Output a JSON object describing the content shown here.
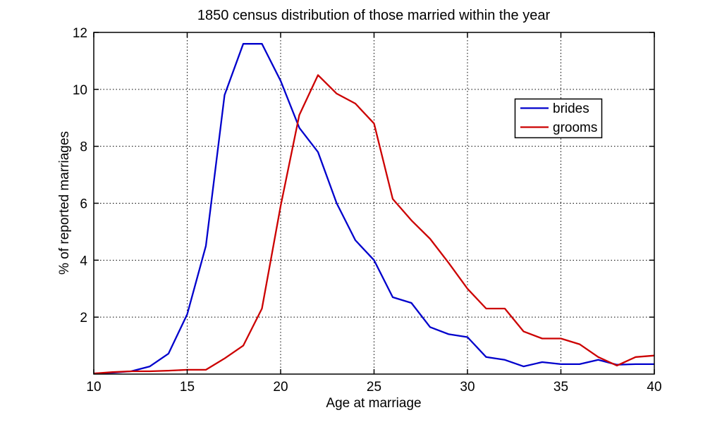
{
  "figure": {
    "background": "#ffffff",
    "axis_color": "#000000",
    "grid_style": "dotted"
  },
  "legend": {
    "position": "upper right",
    "entries": [
      {
        "label": "brides",
        "color": "#0000CC"
      },
      {
        "label": "grooms",
        "color": "#CC0000"
      }
    ]
  },
  "chart_data": {
    "type": "line",
    "title": "1850 census distribution of those married within the year",
    "xlabel": "Age at marriage",
    "ylabel": "% of reported marriages",
    "xlim": [
      10,
      40
    ],
    "ylim": [
      0,
      12
    ],
    "xticks": [
      10,
      15,
      20,
      25,
      30,
      35,
      40
    ],
    "yticks": [
      2,
      4,
      6,
      8,
      10,
      12
    ],
    "grid": true,
    "legend_position": "upper right",
    "x": [
      10,
      11,
      12,
      13,
      14,
      15,
      16,
      17,
      18,
      19,
      20,
      21,
      22,
      23,
      24,
      25,
      26,
      27,
      28,
      29,
      30,
      31,
      32,
      33,
      34,
      35,
      36,
      37,
      38,
      39,
      40
    ],
    "series": [
      {
        "name": "brides",
        "color": "#0000CC",
        "values": [
          0.02,
          0.05,
          0.1,
          0.27,
          0.72,
          2.1,
          4.5,
          9.8,
          11.6,
          11.6,
          10.3,
          8.65,
          7.8,
          6.0,
          4.7,
          4.0,
          2.7,
          2.5,
          1.65,
          1.4,
          1.3,
          0.6,
          0.5,
          0.27,
          0.42,
          0.35,
          0.35,
          0.5,
          0.33,
          0.35,
          0.35
        ]
      },
      {
        "name": "grooms",
        "color": "#CC0000",
        "values": [
          0.02,
          0.07,
          0.1,
          0.1,
          0.12,
          0.15,
          0.15,
          0.55,
          1.0,
          2.3,
          5.9,
          9.1,
          10.5,
          9.85,
          9.5,
          8.8,
          6.15,
          5.4,
          4.75,
          3.9,
          3.0,
          2.3,
          2.3,
          1.5,
          1.25,
          1.25,
          1.05,
          0.6,
          0.3,
          0.6,
          0.65
        ]
      }
    ]
  }
}
